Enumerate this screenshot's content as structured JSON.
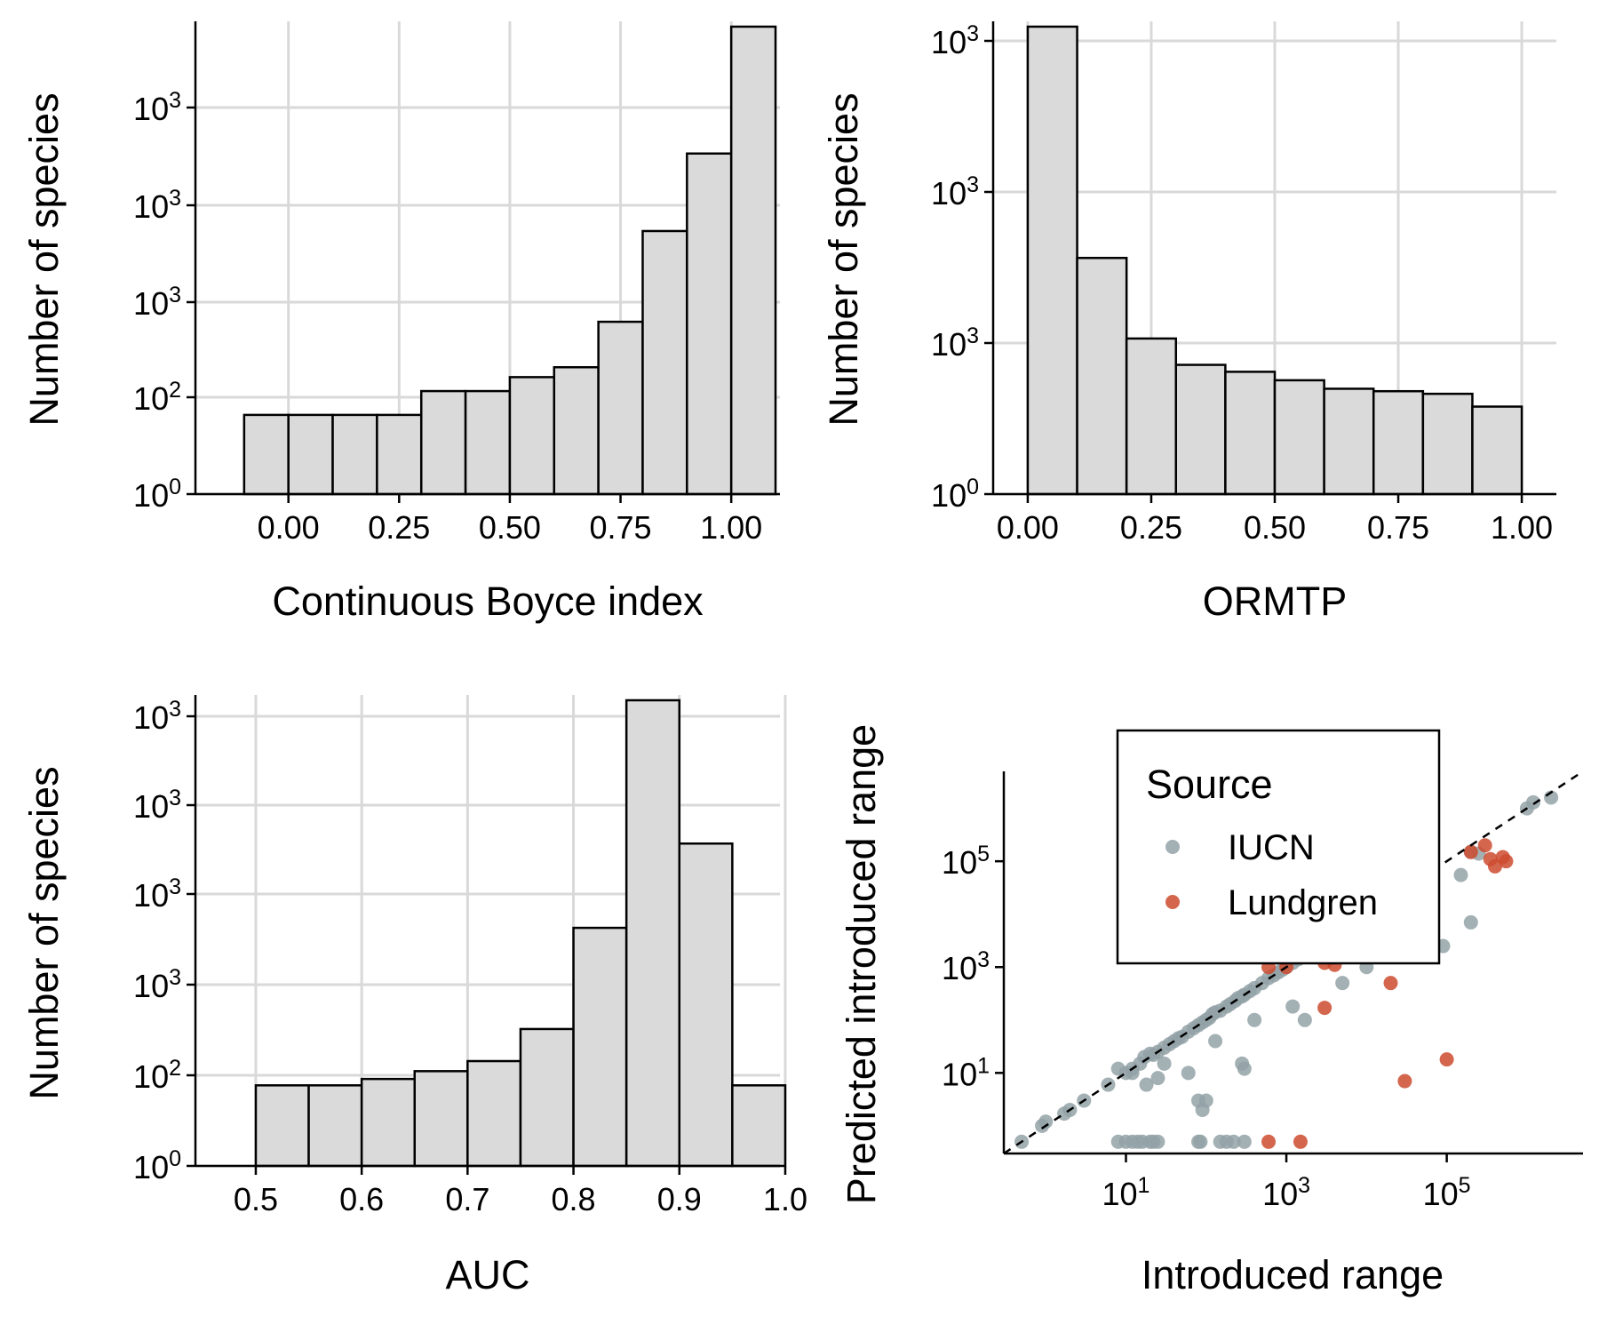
{
  "chart_data": [
    {
      "type": "bar",
      "subtype": "histogram",
      "xlabel": "Continuous Boyce index",
      "ylabel": "Number of species",
      "y_scale": "log",
      "x_ticks": [
        "0.00",
        "0.25",
        "0.50",
        "0.75",
        "1.00"
      ],
      "y_tick_labels": [
        {
          "base": "10",
          "exp": "0"
        },
        {
          "base": "10",
          "exp": "2"
        },
        {
          "base": "10",
          "exp": "3"
        },
        {
          "base": "10",
          "exp": "3"
        },
        {
          "base": "10",
          "exp": "3"
        }
      ],
      "bins": [
        -0.2,
        -0.1,
        0.0,
        0.1,
        0.2,
        0.3,
        0.4,
        0.5,
        0.6,
        0.7,
        0.8,
        0.9,
        1.0
      ],
      "bin_width": 0.1,
      "counts": [
        0,
        1,
        1,
        1,
        1,
        2,
        2,
        3,
        4,
        15,
        210,
        2000,
        80000
      ],
      "grid": true
    },
    {
      "type": "bar",
      "subtype": "histogram",
      "xlabel": "ORMTP",
      "ylabel": "Number of species",
      "y_scale": "log",
      "x_ticks": [
        "0.00",
        "0.25",
        "0.50",
        "0.75",
        "1.00"
      ],
      "y_tick_labels": [
        {
          "base": "10",
          "exp": "0"
        },
        {
          "base": "10",
          "exp": "3"
        },
        {
          "base": "10",
          "exp": "3"
        },
        {
          "base": "10",
          "exp": "3"
        }
      ],
      "bins": [
        0.0,
        0.1,
        0.2,
        0.3,
        0.4,
        0.5,
        0.6,
        0.7,
        0.8,
        0.9
      ],
      "bin_width": 0.1,
      "counts": [
        22000,
        50,
        6,
        3,
        2.5,
        2,
        1.6,
        1.5,
        1.4,
        1
      ],
      "grid": true
    },
    {
      "type": "bar",
      "subtype": "histogram",
      "xlabel": "AUC",
      "ylabel": "Number of species",
      "y_scale": "log",
      "x_ticks": [
        "0.5",
        "0.6",
        "0.7",
        "0.8",
        "0.9",
        "1.0"
      ],
      "y_tick_labels": [
        {
          "base": "10",
          "exp": "0"
        },
        {
          "base": "10",
          "exp": "2"
        },
        {
          "base": "10",
          "exp": "3"
        },
        {
          "base": "10",
          "exp": "3"
        },
        {
          "base": "10",
          "exp": "3"
        },
        {
          "base": "10",
          "exp": "3"
        }
      ],
      "bins": [
        0.5,
        0.55,
        0.6,
        0.65,
        0.7,
        0.75,
        0.8,
        0.85,
        0.9,
        0.95
      ],
      "bin_width": 0.05,
      "counts": [
        1,
        1,
        1.2,
        1.5,
        2,
        5,
        90,
        60000,
        1000,
        1
      ],
      "grid": true
    },
    {
      "type": "scatter",
      "xlabel": "Introduced range",
      "ylabel": "Predicted introduced range",
      "x_scale": "log",
      "y_scale": "log",
      "x_tick_labels": [
        {
          "base": "10",
          "exp": "1"
        },
        {
          "base": "10",
          "exp": "3"
        },
        {
          "base": "10",
          "exp": "5"
        }
      ],
      "y_tick_labels": [
        {
          "base": "10",
          "exp": "1"
        },
        {
          "base": "10",
          "exp": "3"
        },
        {
          "base": "10",
          "exp": "5"
        }
      ],
      "xlim": [
        0.3,
        5000000
      ],
      "ylim": [
        0.3,
        5000000
      ],
      "reference_line": "y = x (dashed)",
      "grid": false,
      "legend": {
        "title": "Source",
        "position": "top-left",
        "entries": [
          {
            "label": "IUCN",
            "color": "#93a2a7"
          },
          {
            "label": "Lundgren",
            "color": "#cd4b2f"
          }
        ]
      },
      "series": [
        {
          "name": "IUCN",
          "color": "#93a2a7",
          "points": [
            [
              0.5,
              0.5
            ],
            [
              0.9,
              1
            ],
            [
              1,
              1.2
            ],
            [
              1.7,
              1.7
            ],
            [
              2,
              2
            ],
            [
              3,
              3
            ],
            [
              6,
              6
            ],
            [
              10,
              10
            ],
            [
              12,
              12
            ],
            [
              15,
              15
            ],
            [
              17,
              20
            ],
            [
              20,
              23
            ],
            [
              22,
              22
            ],
            [
              25,
              25
            ],
            [
              30,
              30
            ],
            [
              35,
              35
            ],
            [
              40,
              40
            ],
            [
              45,
              45
            ],
            [
              50,
              48
            ],
            [
              60,
              60
            ],
            [
              70,
              70
            ],
            [
              80,
              80
            ],
            [
              90,
              90
            ],
            [
              100,
              100
            ],
            [
              110,
              110
            ],
            [
              120,
              130
            ],
            [
              130,
              140
            ],
            [
              150,
              150
            ],
            [
              180,
              180
            ],
            [
              200,
              200
            ],
            [
              230,
              230
            ],
            [
              250,
              260
            ],
            [
              280,
              280
            ],
            [
              300,
              300
            ],
            [
              350,
              350
            ],
            [
              400,
              400
            ],
            [
              500,
              500
            ],
            [
              600,
              620
            ],
            [
              700,
              700
            ],
            [
              800,
              800
            ],
            [
              900,
              900
            ],
            [
              1000,
              1000
            ],
            [
              1200,
              1200
            ],
            [
              1400,
              1400
            ],
            [
              1600,
              1600
            ],
            [
              2000,
              2000
            ],
            [
              2500,
              2500
            ],
            [
              3000,
              3000
            ],
            [
              8,
              12
            ],
            [
              12,
              10
            ],
            [
              18,
              6
            ],
            [
              25,
              8
            ],
            [
              30,
              15
            ],
            [
              60,
              10
            ],
            [
              100,
              3
            ],
            [
              130,
              40
            ],
            [
              280,
              15
            ],
            [
              300,
              12
            ],
            [
              400,
              100
            ],
            [
              1200,
              180
            ],
            [
              1700,
              100
            ],
            [
              5000,
              500
            ],
            [
              10000,
              1000
            ],
            [
              20000,
              1600
            ],
            [
              40000,
              2000
            ],
            [
              90000,
              2500
            ],
            [
              200000,
              7000
            ],
            [
              150000,
              55000
            ],
            [
              200000,
              150000
            ],
            [
              250000,
              140000
            ],
            [
              1000000,
              1000000
            ],
            [
              1200000,
              1300000
            ],
            [
              2000000,
              1600000
            ],
            [
              80,
              3
            ],
            [
              90,
              2
            ],
            [
              8,
              0.5
            ],
            [
              10,
              0.5
            ],
            [
              12,
              0.5
            ],
            [
              14,
              0.5
            ],
            [
              16,
              0.5
            ],
            [
              20,
              0.5
            ],
            [
              22,
              0.5
            ],
            [
              25,
              0.5
            ],
            [
              80,
              0.5
            ],
            [
              85,
              0.5
            ],
            [
              150,
              0.5
            ],
            [
              180,
              0.5
            ],
            [
              220,
              0.5
            ],
            [
              300,
              0.5
            ]
          ]
        },
        {
          "name": "Lundgren",
          "color": "#cd4b2f",
          "points": [
            [
              600,
              1000
            ],
            [
              1000,
              1000
            ],
            [
              3000,
              1200
            ],
            [
              4000,
              1100
            ],
            [
              20000,
              500
            ],
            [
              3000,
              170
            ],
            [
              30000,
              7
            ],
            [
              100000,
              18
            ],
            [
              200000,
              150000
            ],
            [
              300000,
              200000
            ],
            [
              350000,
              110000
            ],
            [
              400000,
              80000
            ],
            [
              500000,
              120000
            ],
            [
              550000,
              100000
            ],
            [
              20000,
              20000
            ],
            [
              60000,
              50000
            ],
            [
              600,
              0.5
            ],
            [
              1500,
              0.5
            ]
          ]
        }
      ]
    }
  ]
}
